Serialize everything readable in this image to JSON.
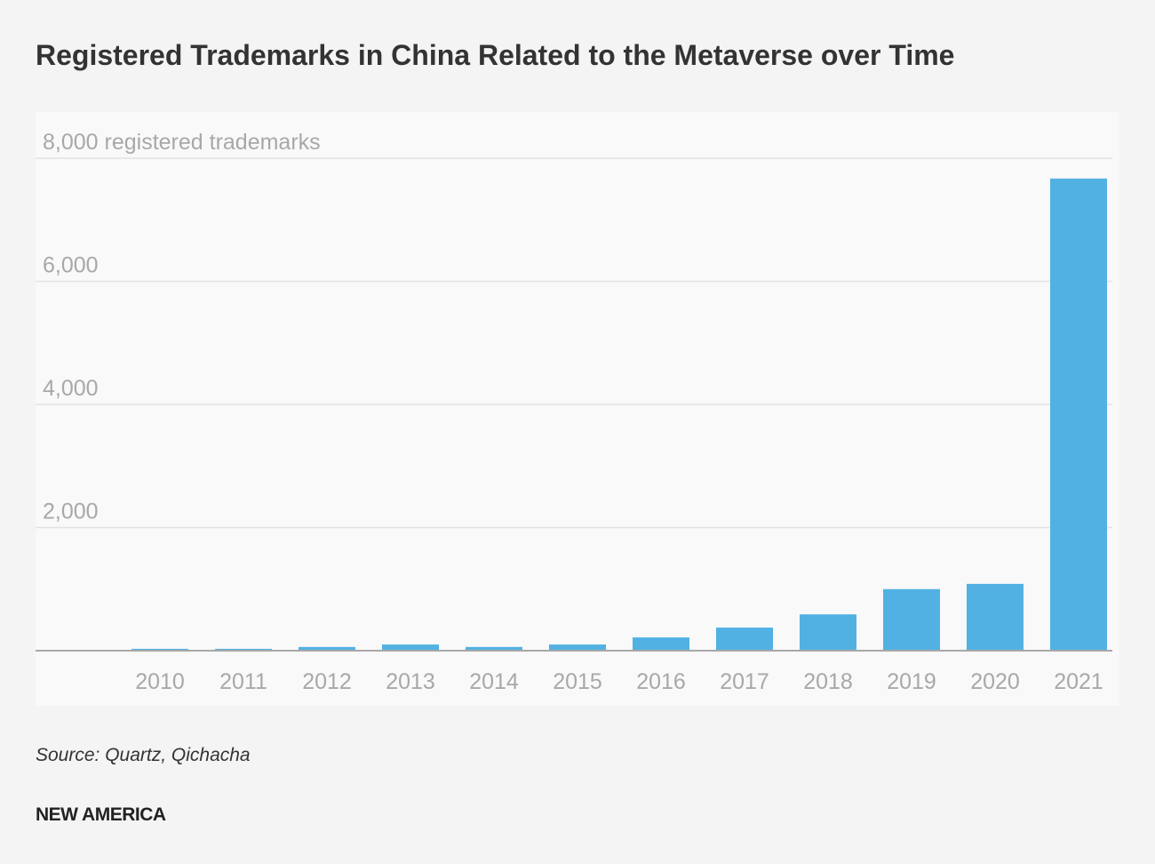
{
  "chart_data": {
    "type": "bar",
    "title": "Registered Trademarks in China Related to the Metaverse over Time",
    "ylabel": "",
    "xlabel": "",
    "y_unit_label": "registered trademarks",
    "ylim": [
      0,
      8000
    ],
    "yticks": [
      2000,
      4000,
      6000,
      8000
    ],
    "ytick_labels": [
      "2,000",
      "4,000",
      "6,000",
      "8,000 registered trademarks"
    ],
    "grid": true,
    "categories": [
      "2010",
      "2011",
      "2012",
      "2013",
      "2014",
      "2015",
      "2016",
      "2017",
      "2018",
      "2019",
      "2020",
      "2021"
    ],
    "values": [
      30,
      30,
      60,
      100,
      60,
      100,
      215,
      375,
      590,
      1000,
      1085,
      7670
    ],
    "colors": {
      "bar": "#52b1e3",
      "grid": "#e3e3e3",
      "axis": "#a8a8a8",
      "tick_text": "#a8a8a8"
    }
  },
  "source": "Source: Quartz, Qichacha",
  "logo": "NEW AMERICA"
}
